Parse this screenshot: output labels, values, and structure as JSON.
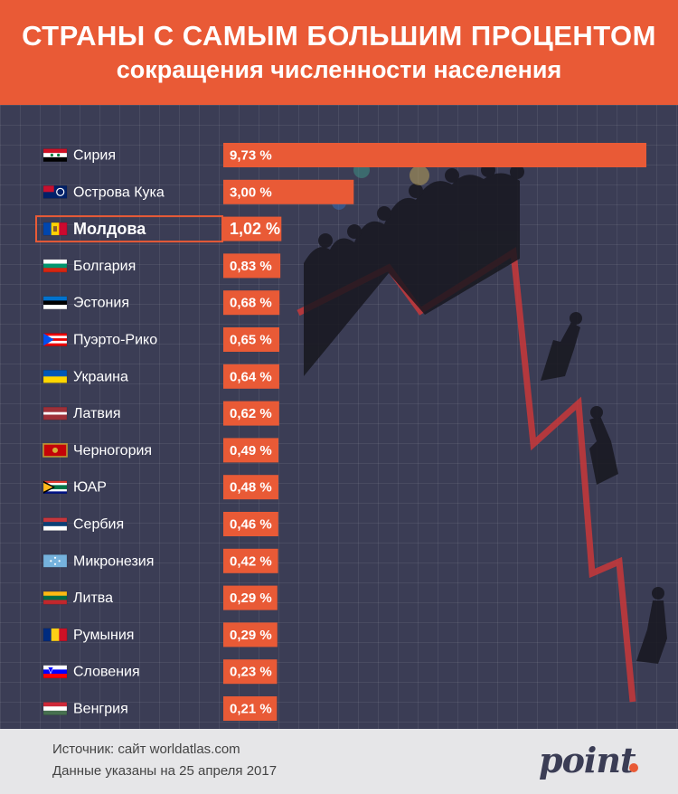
{
  "header": {
    "title_line1": "СТРАНЫ С САМЫМ БОЛЬШИМ ПРОЦЕНТОМ",
    "title_line2": "сокращения численности населения"
  },
  "colors": {
    "accent": "#e95a36",
    "background": "#3b3d55",
    "text_light": "#ffffff"
  },
  "chart_data": {
    "type": "bar",
    "orientation": "horizontal",
    "title": "СТРАНЫ С САМЫМ БОЛЬШИМ ПРОЦЕНТОМ сокращения численности населения",
    "categories": [
      "Сирия",
      "Острова Кука",
      "Молдова",
      "Болгария",
      "Эстония",
      "Пуэрто-Рико",
      "Украина",
      "Латвия",
      "Черногория",
      "ЮАР",
      "Сербия",
      "Микронезия",
      "Литва",
      "Румыния",
      "Словения",
      "Венгрия"
    ],
    "values": [
      9.73,
      3.0,
      1.02,
      0.83,
      0.68,
      0.65,
      0.64,
      0.62,
      0.49,
      0.48,
      0.46,
      0.42,
      0.29,
      0.29,
      0.23,
      0.21
    ],
    "value_labels": [
      "9,73 %",
      "3,00 %",
      "1,02 %",
      "0,83 %",
      "0,68 %",
      "0,65 %",
      "0,64 %",
      "0,62 %",
      "0,49 %",
      "0,48 %",
      "0,46 %",
      "0,42 %",
      "0,29 %",
      "0,29 %",
      "0,23 %",
      "0,21 %"
    ],
    "flags": [
      "flag-syria",
      "flag-cook-islands",
      "flag-moldova",
      "flag-bulgaria",
      "flag-estonia",
      "flag-puerto-rico",
      "flag-ukraine",
      "flag-latvia",
      "flag-montenegro",
      "flag-south-africa",
      "flag-serbia",
      "flag-micronesia",
      "flag-lithuania",
      "flag-romania",
      "flag-slovenia",
      "flag-hungary"
    ],
    "highlighted": "Молдова",
    "grid": true,
    "legend": "none"
  },
  "footer": {
    "source": "Источник: сайт worldatlas.com",
    "date": "Данные указаны на 25 апреля 2017",
    "logo_text": "point"
  }
}
